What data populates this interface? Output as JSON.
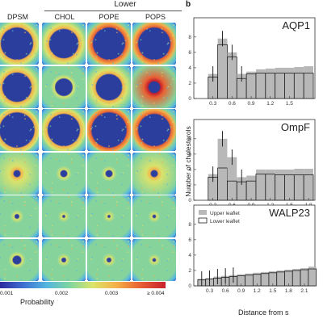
{
  "panel_a": {
    "group_header": "Lower",
    "columns": [
      "DPSM",
      "CHOL",
      "POPE",
      "POPS"
    ],
    "rows": 6,
    "colorbar": {
      "tick_labels": [
        "0.001",
        "0.002",
        "0.003",
        "≥ 0.004"
      ],
      "label": "Probability"
    }
  },
  "panel_b": {
    "letter": "b",
    "ylabel": "Number of cholesterols",
    "xlabel": "Distance from s",
    "legend": [
      "Upper leaflet",
      "Lower leaflet"
    ]
  },
  "chart_data": [
    {
      "type": "bar",
      "title": "AQP1",
      "x": [
        0.15,
        0.3,
        0.45,
        0.6,
        0.75,
        0.9,
        1.05,
        1.2,
        1.35,
        1.5,
        1.65,
        1.8
      ],
      "xticks": [
        "0.3",
        "0.6",
        "0.9",
        "1.2",
        "1.5"
      ],
      "yticks": [
        "0",
        "2",
        "4",
        "6",
        "8"
      ],
      "ylim": [
        0,
        10.5
      ],
      "xlim": [
        0,
        1.9
      ],
      "series": [
        {
          "name": "Upper leaflet",
          "values": [
            0.0,
            3.2,
            7.8,
            6.0,
            3.2,
            3.5,
            3.8,
            3.9,
            4.0,
            4.0,
            4.1,
            4.2
          ]
        },
        {
          "name": "Lower leaflet",
          "values": [
            0.0,
            2.8,
            7.0,
            5.4,
            2.6,
            3.2,
            3.3,
            3.3,
            3.3,
            3.3,
            3.3,
            3.3
          ]
        }
      ]
    },
    {
      "type": "bar",
      "title": "OmpF",
      "x": [
        0.15,
        0.3,
        0.45,
        0.6,
        0.75,
        0.9,
        1.05,
        1.2,
        1.35,
        1.5,
        1.65,
        1.8
      ],
      "xticks": [
        "0.3",
        "0.6",
        "0.9",
        "1.2",
        "1.5",
        "1.8"
      ],
      "yticks": [
        "0",
        "2",
        "4",
        "6",
        "8"
      ],
      "ylim": [
        0,
        10.5
      ],
      "xlim": [
        0,
        1.9
      ],
      "series": [
        {
          "name": "Upper leaflet",
          "values": [
            0.0,
            3.4,
            8.0,
            5.6,
            3.0,
            3.2,
            4.0,
            4.0,
            4.0,
            4.0,
            4.1,
            4.1
          ]
        },
        {
          "name": "Lower leaflet",
          "values": [
            0.0,
            3.0,
            4.2,
            2.5,
            2.4,
            2.5,
            3.4,
            3.4,
            3.3,
            3.3,
            3.3,
            3.3
          ]
        }
      ]
    },
    {
      "type": "bar",
      "title": "WALP23",
      "x": [
        0.15,
        0.3,
        0.45,
        0.6,
        0.75,
        0.9,
        1.05,
        1.2,
        1.35,
        1.5,
        1.65,
        1.8,
        1.95,
        2.1,
        2.25
      ],
      "xticks": [
        "0.3",
        "0.6",
        "0.9",
        "1.2",
        "1.5",
        "1.8",
        "2.1"
      ],
      "yticks": [
        "0",
        "2",
        "4",
        "6",
        "8"
      ],
      "ylim": [
        0,
        10.5
      ],
      "xlim": [
        0,
        2.3
      ],
      "series": [
        {
          "name": "Upper leaflet",
          "values": [
            0.9,
            1.0,
            1.2,
            1.3,
            1.4,
            1.5,
            1.6,
            1.7,
            1.8,
            1.9,
            2.0,
            2.1,
            2.2,
            2.3,
            2.5
          ]
        },
        {
          "name": "Lower leaflet",
          "values": [
            0.8,
            0.9,
            1.0,
            1.1,
            1.2,
            1.3,
            1.4,
            1.5,
            1.6,
            1.7,
            1.8,
            1.9,
            2.0,
            2.1,
            2.2
          ]
        }
      ]
    }
  ]
}
